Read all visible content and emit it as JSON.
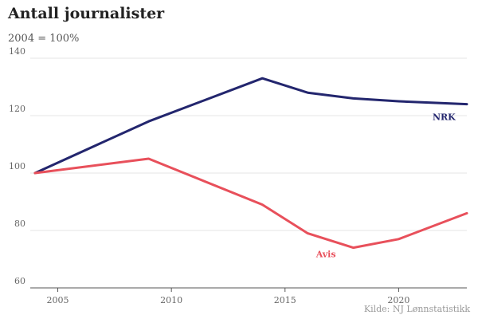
{
  "chart_data": {
    "type": "line",
    "title": "Antall journalister",
    "subtitle": "2004 = 100%",
    "source": "Kilde: NJ Lønnstatistikk",
    "xlabel": "",
    "ylabel": "",
    "xlim": [
      2004,
      2023
    ],
    "ylim": [
      60,
      140
    ],
    "x_ticks": [
      2005,
      2010,
      2015,
      2020
    ],
    "y_ticks": [
      60,
      80,
      100,
      120,
      140
    ],
    "grid": "horizontal",
    "series": [
      {
        "name": "NRK",
        "color": "#23266e",
        "x": [
          2004,
          2009,
          2014,
          2016,
          2018,
          2020,
          2023
        ],
        "values": [
          100,
          118,
          133,
          128,
          126,
          125,
          124
        ]
      },
      {
        "name": "Avis",
        "color": "#e8505b",
        "x": [
          2004,
          2009,
          2014,
          2016,
          2018,
          2020,
          2023
        ],
        "values": [
          100,
          105,
          89,
          79,
          74,
          77,
          86
        ]
      }
    ]
  }
}
